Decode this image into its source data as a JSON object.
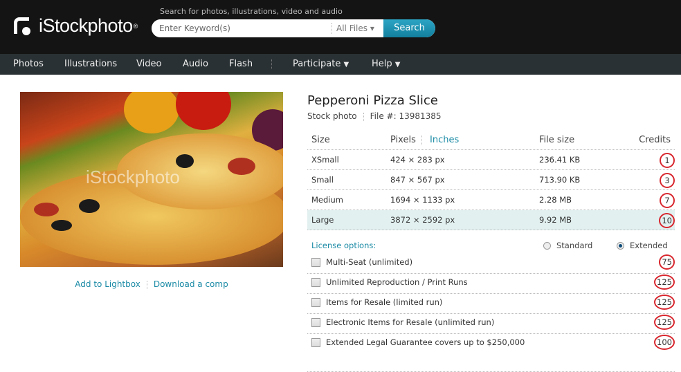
{
  "header": {
    "logo": "iStockphoto",
    "search_hint": "Search for photos, illustrations, video and audio",
    "search_placeholder": "Enter Keyword(s)",
    "file_filter": "All Files",
    "search_button": "Search"
  },
  "nav": {
    "items": [
      "Photos",
      "Illustrations",
      "Video",
      "Audio",
      "Flash"
    ],
    "participate": "Participate",
    "help": "Help"
  },
  "photo": {
    "watermark": "iStockphoto"
  },
  "links": {
    "lightbox": "Add to Lightbox",
    "comp": "Download a comp"
  },
  "product": {
    "title": "Pepperoni Pizza Slice",
    "type": "Stock photo",
    "file_no": "File #: 13981385"
  },
  "sizes": {
    "headers": {
      "size": "Size",
      "pixels": "Pixels",
      "inches": "Inches",
      "filesize": "File size",
      "credits": "Credits"
    },
    "rows": [
      {
        "size": "XSmall",
        "pixels": "424 × 283 px",
        "filesize": "236.41 KB",
        "credits": "1"
      },
      {
        "size": "Small",
        "pixels": "847 × 567 px",
        "filesize": "713.90 KB",
        "credits": "3"
      },
      {
        "size": "Medium",
        "pixels": "1694 × 1133 px",
        "filesize": "2.28 MB",
        "credits": "7"
      },
      {
        "size": "Large",
        "pixels": "3872 × 2592 px",
        "filesize": "9.92 MB",
        "credits": "10",
        "selected": true
      }
    ]
  },
  "license": {
    "label": "License options:",
    "standard": "Standard",
    "extended": "Extended",
    "selected": "Extended",
    "options": [
      {
        "label": "Multi-Seat (unlimited)",
        "credits": "75",
        "checked": false
      },
      {
        "label": "Unlimited Reproduction / Print Runs",
        "credits": "125",
        "checked": false
      },
      {
        "label": "Items for Resale (limited run)",
        "credits": "125",
        "checked": false
      },
      {
        "label": "Electronic Items for Resale (unlimited run)",
        "credits": "125",
        "checked": false
      },
      {
        "label": "Extended Legal Guarantee covers up to $250,000",
        "credits": "100",
        "checked": false
      }
    ]
  },
  "colors": {
    "accent": "#1a8aa5",
    "highlight": "#d8262e",
    "header_bg": "#141414",
    "nav_bg": "#2a3134"
  }
}
